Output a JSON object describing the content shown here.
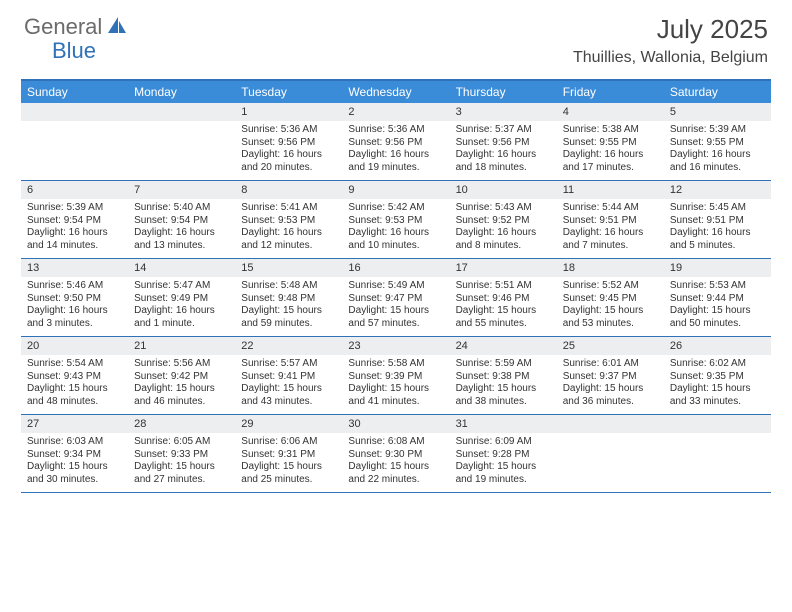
{
  "brand": {
    "general": "General",
    "blue": "Blue"
  },
  "title": "July 2025",
  "location": "Thuillies, Wallonia, Belgium",
  "colors": {
    "brand_blue": "#2f72b8",
    "header_bg": "#3a8bd8",
    "daynum_bg": "#eceef0",
    "text": "#333333"
  },
  "days_of_week": [
    "Sunday",
    "Monday",
    "Tuesday",
    "Wednesday",
    "Thursday",
    "Friday",
    "Saturday"
  ],
  "first_weekday_index": 2,
  "days": [
    {
      "n": 1,
      "sunrise": "5:36 AM",
      "sunset": "9:56 PM",
      "daylight": "16 hours and 20 minutes."
    },
    {
      "n": 2,
      "sunrise": "5:36 AM",
      "sunset": "9:56 PM",
      "daylight": "16 hours and 19 minutes."
    },
    {
      "n": 3,
      "sunrise": "5:37 AM",
      "sunset": "9:56 PM",
      "daylight": "16 hours and 18 minutes."
    },
    {
      "n": 4,
      "sunrise": "5:38 AM",
      "sunset": "9:55 PM",
      "daylight": "16 hours and 17 minutes."
    },
    {
      "n": 5,
      "sunrise": "5:39 AM",
      "sunset": "9:55 PM",
      "daylight": "16 hours and 16 minutes."
    },
    {
      "n": 6,
      "sunrise": "5:39 AM",
      "sunset": "9:54 PM",
      "daylight": "16 hours and 14 minutes."
    },
    {
      "n": 7,
      "sunrise": "5:40 AM",
      "sunset": "9:54 PM",
      "daylight": "16 hours and 13 minutes."
    },
    {
      "n": 8,
      "sunrise": "5:41 AM",
      "sunset": "9:53 PM",
      "daylight": "16 hours and 12 minutes."
    },
    {
      "n": 9,
      "sunrise": "5:42 AM",
      "sunset": "9:53 PM",
      "daylight": "16 hours and 10 minutes."
    },
    {
      "n": 10,
      "sunrise": "5:43 AM",
      "sunset": "9:52 PM",
      "daylight": "16 hours and 8 minutes."
    },
    {
      "n": 11,
      "sunrise": "5:44 AM",
      "sunset": "9:51 PM",
      "daylight": "16 hours and 7 minutes."
    },
    {
      "n": 12,
      "sunrise": "5:45 AM",
      "sunset": "9:51 PM",
      "daylight": "16 hours and 5 minutes."
    },
    {
      "n": 13,
      "sunrise": "5:46 AM",
      "sunset": "9:50 PM",
      "daylight": "16 hours and 3 minutes."
    },
    {
      "n": 14,
      "sunrise": "5:47 AM",
      "sunset": "9:49 PM",
      "daylight": "16 hours and 1 minute."
    },
    {
      "n": 15,
      "sunrise": "5:48 AM",
      "sunset": "9:48 PM",
      "daylight": "15 hours and 59 minutes."
    },
    {
      "n": 16,
      "sunrise": "5:49 AM",
      "sunset": "9:47 PM",
      "daylight": "15 hours and 57 minutes."
    },
    {
      "n": 17,
      "sunrise": "5:51 AM",
      "sunset": "9:46 PM",
      "daylight": "15 hours and 55 minutes."
    },
    {
      "n": 18,
      "sunrise": "5:52 AM",
      "sunset": "9:45 PM",
      "daylight": "15 hours and 53 minutes."
    },
    {
      "n": 19,
      "sunrise": "5:53 AM",
      "sunset": "9:44 PM",
      "daylight": "15 hours and 50 minutes."
    },
    {
      "n": 20,
      "sunrise": "5:54 AM",
      "sunset": "9:43 PM",
      "daylight": "15 hours and 48 minutes."
    },
    {
      "n": 21,
      "sunrise": "5:56 AM",
      "sunset": "9:42 PM",
      "daylight": "15 hours and 46 minutes."
    },
    {
      "n": 22,
      "sunrise": "5:57 AM",
      "sunset": "9:41 PM",
      "daylight": "15 hours and 43 minutes."
    },
    {
      "n": 23,
      "sunrise": "5:58 AM",
      "sunset": "9:39 PM",
      "daylight": "15 hours and 41 minutes."
    },
    {
      "n": 24,
      "sunrise": "5:59 AM",
      "sunset": "9:38 PM",
      "daylight": "15 hours and 38 minutes."
    },
    {
      "n": 25,
      "sunrise": "6:01 AM",
      "sunset": "9:37 PM",
      "daylight": "15 hours and 36 minutes."
    },
    {
      "n": 26,
      "sunrise": "6:02 AM",
      "sunset": "9:35 PM",
      "daylight": "15 hours and 33 minutes."
    },
    {
      "n": 27,
      "sunrise": "6:03 AM",
      "sunset": "9:34 PM",
      "daylight": "15 hours and 30 minutes."
    },
    {
      "n": 28,
      "sunrise": "6:05 AM",
      "sunset": "9:33 PM",
      "daylight": "15 hours and 27 minutes."
    },
    {
      "n": 29,
      "sunrise": "6:06 AM",
      "sunset": "9:31 PM",
      "daylight": "15 hours and 25 minutes."
    },
    {
      "n": 30,
      "sunrise": "6:08 AM",
      "sunset": "9:30 PM",
      "daylight": "15 hours and 22 minutes."
    },
    {
      "n": 31,
      "sunrise": "6:09 AM",
      "sunset": "9:28 PM",
      "daylight": "15 hours and 19 minutes."
    }
  ],
  "labels": {
    "sunrise": "Sunrise:",
    "sunset": "Sunset:",
    "daylight": "Daylight:"
  }
}
